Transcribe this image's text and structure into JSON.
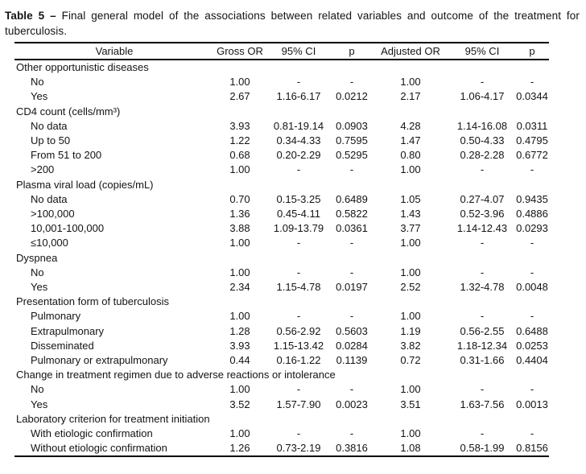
{
  "title": {
    "bold": "Table 5 –",
    "text": "Final general model of the associations between related variables and outcome of the treatment for tuberculosis."
  },
  "table": {
    "columns": [
      "Variable",
      "Gross OR",
      "95% CI",
      "p",
      "Adjusted OR",
      "95% CI",
      "p"
    ],
    "sections": [
      {
        "header": "Other opportunistic diseases",
        "rows": [
          {
            "cells": [
              "No",
              "1.00",
              "-",
              "-",
              "1.00",
              "-",
              "-"
            ]
          },
          {
            "cells": [
              "Yes",
              "2.67",
              "1.16-6.17",
              "0.0212",
              "2.17",
              "1.06-4.17",
              "0.0344"
            ]
          }
        ]
      },
      {
        "header": "CD4 count (cells/mm³)",
        "rows": [
          {
            "cells": [
              "No data",
              "3.93",
              "0.81-19.14",
              "0.0903",
              "4.28",
              "1.14-16.08",
              "0.0311"
            ]
          },
          {
            "cells": [
              "Up to 50",
              "1.22",
              "0.34-4.33",
              "0.7595",
              "1.47",
              "0.50-4.33",
              "0.4795"
            ]
          },
          {
            "cells": [
              "From 51 to 200",
              "0.68",
              "0.20-2.29",
              "0.5295",
              "0.80",
              "0.28-2.28",
              "0.6772"
            ]
          },
          {
            "cells": [
              ">200",
              "1.00",
              "-",
              "-",
              "1.00",
              "-",
              "-"
            ]
          }
        ]
      },
      {
        "header": "Plasma viral load (copies/mL)",
        "rows": [
          {
            "cells": [
              "No data",
              "0.70",
              "0.15-3.25",
              "0.6489",
              "1.05",
              "0.27-4.07",
              "0.9435"
            ]
          },
          {
            "cells": [
              ">100,000",
              "1.36",
              "0.45-4.11",
              "0.5822",
              "1.43",
              "0.52-3.96",
              "0.4886"
            ]
          },
          {
            "cells": [
              "10,001-100,000",
              "3.88",
              "1.09-13.79",
              "0.0361",
              "3.77",
              "1.14-12.43",
              "0.0293"
            ]
          },
          {
            "cells": [
              "≤10,000",
              "1.00",
              "-",
              "-",
              "1.00",
              "-",
              "-"
            ]
          }
        ]
      },
      {
        "header": "Dyspnea",
        "rows": [
          {
            "cells": [
              "No",
              "1.00",
              "-",
              "-",
              "1.00",
              "-",
              "-"
            ]
          },
          {
            "cells": [
              "Yes",
              "2.34",
              "1.15-4.78",
              "0.0197",
              "2.52",
              "1.32-4.78",
              "0.0048"
            ]
          }
        ]
      },
      {
        "header": "Presentation form of tuberculosis",
        "rows": [
          {
            "cells": [
              "Pulmonary",
              "1.00",
              "-",
              "-",
              "1.00",
              "-",
              "-"
            ]
          },
          {
            "cells": [
              "Extrapulmonary",
              "1.28",
              "0.56-2.92",
              "0.5603",
              "1.19",
              "0.56-2.55",
              "0.6488"
            ]
          },
          {
            "cells": [
              "Disseminated",
              "3.93",
              "1.15-13.42",
              "0.0284",
              "3.82",
              "1.18-12.34",
              "0.0253"
            ]
          },
          {
            "cells": [
              "Pulmonary or extrapulmonary",
              "0.44",
              "0.16-1.22",
              "0.1139",
              "0.72",
              "0.31-1.66",
              "0.4404"
            ]
          }
        ]
      },
      {
        "header": "Change in treatment regimen due to adverse reactions or intolerance",
        "rows": [
          {
            "cells": [
              "No",
              "1.00",
              "-",
              "-",
              "1.00",
              "-",
              "-"
            ]
          },
          {
            "cells": [
              "Yes",
              "3.52",
              "1.57-7.90",
              "0.0023",
              "3.51",
              "1.63-7.56",
              "0.0013"
            ]
          }
        ]
      },
      {
        "header": "Laboratory criterion for treatment initiation",
        "rows": [
          {
            "cells": [
              "With etiologic confirmation",
              "1.00",
              "-",
              "-",
              "1.00",
              "-",
              "-"
            ]
          },
          {
            "cells": [
              "Without etiologic confirmation",
              "1.26",
              "0.73-2.19",
              "0.3816",
              "1.08",
              "0.58-1.99",
              "0.8156"
            ]
          }
        ]
      }
    ]
  },
  "colors": {
    "text": "#131313",
    "rule": "#000000",
    "background": "#ffffff"
  }
}
